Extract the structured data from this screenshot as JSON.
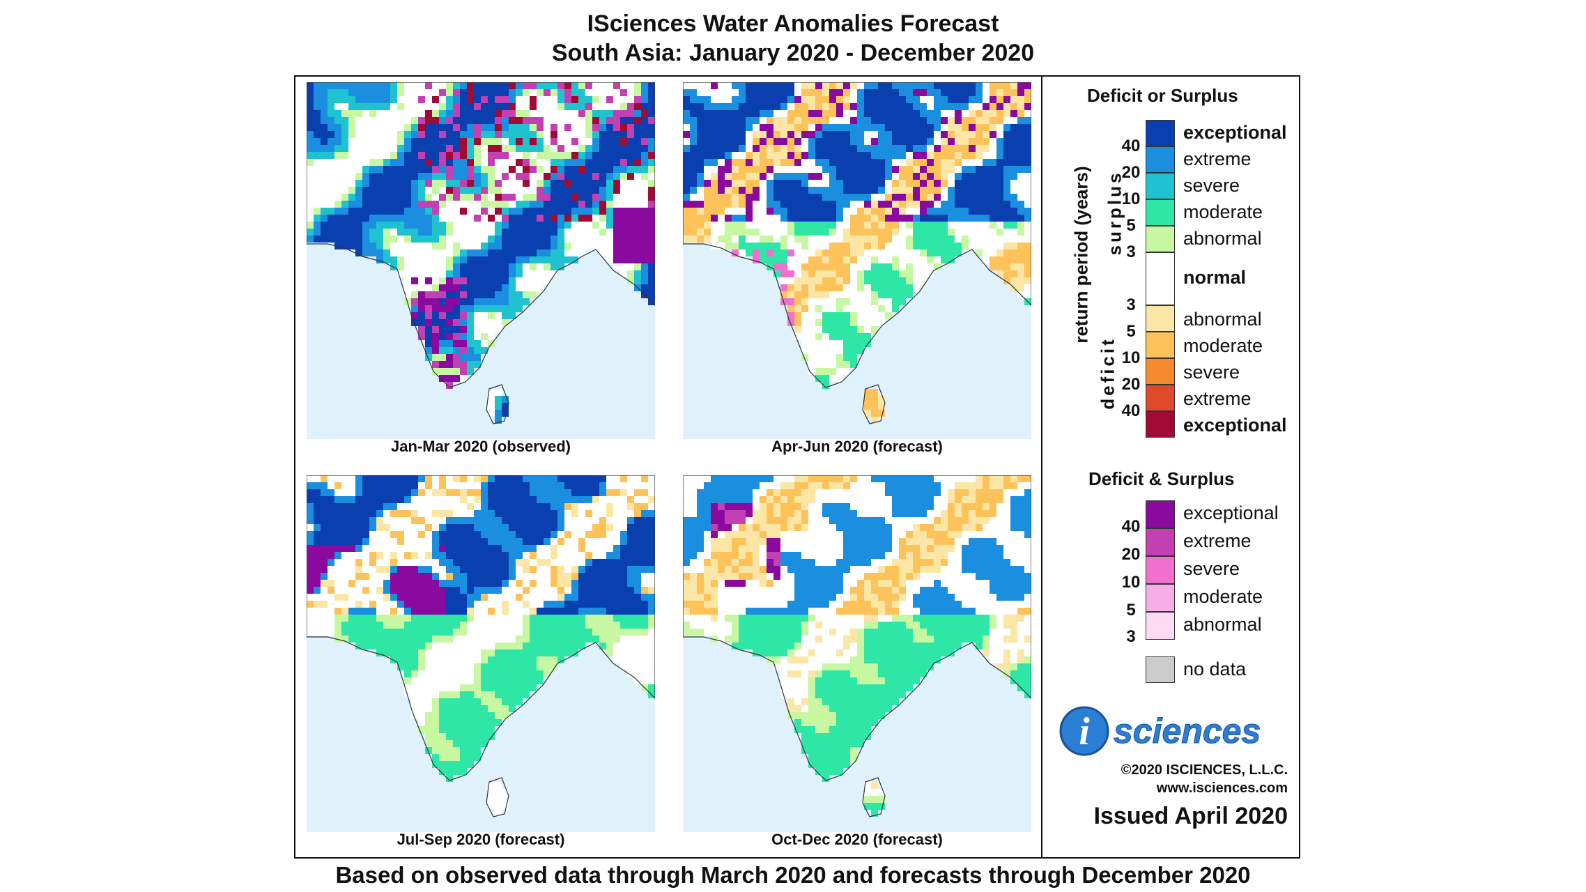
{
  "header": {
    "title": "ISciences Water Anomalies Forecast",
    "subtitle": "South Asia: January 2020 - December 2020"
  },
  "maps": [
    {
      "caption": "Jan-Mar 2020 (observed)",
      "theme": "wet"
    },
    {
      "caption": "Apr-Jun 2020 (forecast)",
      "theme": "mixed"
    },
    {
      "caption": "Jul-Sep 2020 (forecast)",
      "theme": "green"
    },
    {
      "caption": "Oct-Dec 2020 (forecast)",
      "theme": "greendry"
    }
  ],
  "legend": {
    "section1_title": "Deficit or Surplus",
    "axis_label": "return period (years)",
    "surplus_label": "surplus",
    "deficit_label": "deficit",
    "surplus_items": [
      {
        "label": "exceptional",
        "color": "#0a3fb0",
        "bold": true
      },
      {
        "label": "extreme",
        "color": "#1a8fe0",
        "bold": false
      },
      {
        "label": "severe",
        "color": "#1ec3cf",
        "bold": false
      },
      {
        "label": "moderate",
        "color": "#2ee6a6",
        "bold": false
      },
      {
        "label": "abnormal",
        "color": "#c8f7a2",
        "bold": false
      }
    ],
    "normal": {
      "label": "normal",
      "color": "#ffffff"
    },
    "deficit_items": [
      {
        "label": "abnormal",
        "color": "#fbe6a5",
        "bold": false
      },
      {
        "label": "moderate",
        "color": "#fdc35a",
        "bold": false
      },
      {
        "label": "severe",
        "color": "#f58a2e",
        "bold": false
      },
      {
        "label": "extreme",
        "color": "#df4a2a",
        "bold": false
      },
      {
        "label": "exceptional",
        "color": "#a00a35",
        "bold": true
      }
    ],
    "surplus_rp": [
      "40",
      "20",
      "10",
      "5",
      "3"
    ],
    "deficit_rp": [
      "3",
      "5",
      "10",
      "20",
      "40"
    ],
    "section2_title": "Deficit & Surplus",
    "both_items": [
      {
        "label": "exceptional",
        "color": "#8a0aa0"
      },
      {
        "label": "extreme",
        "color": "#c23fb4"
      },
      {
        "label": "severe",
        "color": "#f06fcf"
      },
      {
        "label": "moderate",
        "color": "#f7aee6"
      },
      {
        "label": "abnormal",
        "color": "#fcdaf1"
      }
    ],
    "both_rp": [
      "40",
      "20",
      "10",
      "5",
      "3"
    ],
    "nodata": {
      "label": "no data",
      "color": "#cccccc"
    }
  },
  "branding": {
    "logo_letter": "i",
    "logo_word": "sciences",
    "copyright": "©2020 ISCIENCES, L.L.C.",
    "website": "www.isciences.com",
    "issued": "Issued April 2020"
  },
  "footer": "Based on observed data through March 2020 and forecasts through December 2020"
}
